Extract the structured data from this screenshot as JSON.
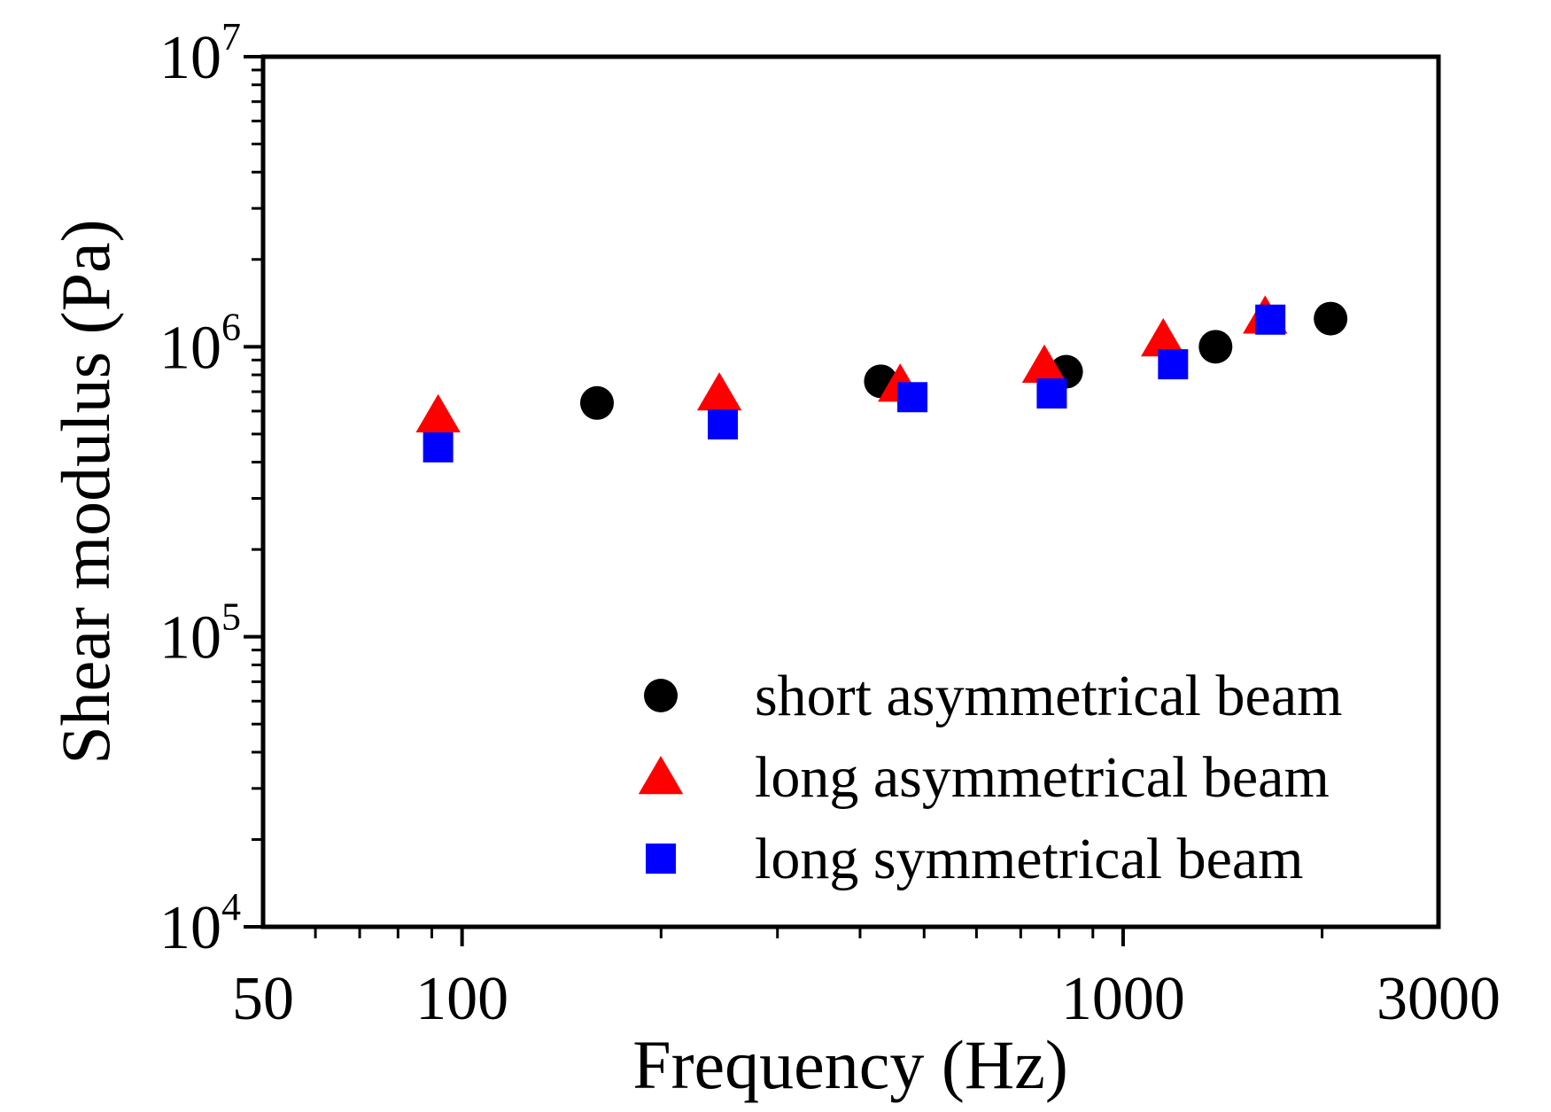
{
  "chart_data": {
    "type": "scatter",
    "xlabel": "Frequency (Hz)",
    "ylabel": "Shear modulus (Pa)",
    "x_scale": "log",
    "y_scale": "log",
    "xlim": [
      50,
      3000
    ],
    "ylim": [
      10000,
      10000000
    ],
    "x_tick_labels": [
      "50",
      "100",
      "1000",
      "3000"
    ],
    "x_tick_values": [
      50,
      100,
      1000,
      3000
    ],
    "y_tick_labels": [
      {
        "base": "10",
        "exp": "4",
        "value": 10000
      },
      {
        "base": "10",
        "exp": "5",
        "value": 100000
      },
      {
        "base": "10",
        "exp": "6",
        "value": 1000000
      },
      {
        "base": "10",
        "exp": "7",
        "value": 10000000
      }
    ],
    "legend_position": "bottom-right",
    "grid": false,
    "series": [
      {
        "name": "short asymmetrical beam",
        "marker": "circle",
        "color": "#000000",
        "points": [
          {
            "x": 160,
            "y": 640000
          },
          {
            "x": 430,
            "y": 760000
          },
          {
            "x": 820,
            "y": 820000
          },
          {
            "x": 1380,
            "y": 1000000
          },
          {
            "x": 2060,
            "y": 1250000
          }
        ]
      },
      {
        "name": "long asymmetrical beam",
        "marker": "triangle",
        "color": "#ff0000",
        "points": [
          {
            "x": 92,
            "y": 580000
          },
          {
            "x": 245,
            "y": 690000
          },
          {
            "x": 460,
            "y": 740000
          },
          {
            "x": 760,
            "y": 860000
          },
          {
            "x": 1150,
            "y": 1060000
          },
          {
            "x": 1640,
            "y": 1270000
          }
        ]
      },
      {
        "name": "long symmetrical beam",
        "marker": "square",
        "color": "#0000ff",
        "points": [
          {
            "x": 92,
            "y": 450000
          },
          {
            "x": 248,
            "y": 540000
          },
          {
            "x": 480,
            "y": 670000
          },
          {
            "x": 780,
            "y": 690000
          },
          {
            "x": 1190,
            "y": 870000
          },
          {
            "x": 1670,
            "y": 1240000
          }
        ]
      }
    ]
  }
}
